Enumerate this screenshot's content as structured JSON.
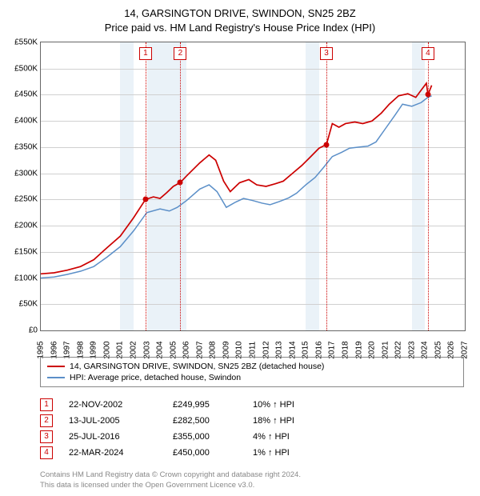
{
  "title_line1": "14, GARSINGTON DRIVE, SWINDON, SN25 2BZ",
  "title_line2": "Price paid vs. HM Land Registry's House Price Index (HPI)",
  "chart": {
    "type": "line",
    "x_start": 1995,
    "x_end": 2027,
    "y_start": 0,
    "y_end": 550000,
    "y_ticks": [
      0,
      50000,
      100000,
      150000,
      200000,
      250000,
      300000,
      350000,
      400000,
      450000,
      500000,
      550000
    ],
    "y_tick_labels": [
      "£0",
      "£50K",
      "£100K",
      "£150K",
      "£200K",
      "£250K",
      "£300K",
      "£350K",
      "£400K",
      "£450K",
      "£500K",
      "£550K"
    ],
    "x_ticks": [
      1995,
      1996,
      1997,
      1998,
      1999,
      2000,
      2001,
      2002,
      2003,
      2004,
      2005,
      2006,
      2007,
      2008,
      2009,
      2010,
      2011,
      2012,
      2013,
      2014,
      2015,
      2016,
      2017,
      2018,
      2019,
      2020,
      2021,
      2022,
      2023,
      2024,
      2025,
      2026,
      2027
    ],
    "bands": [
      [
        2001,
        2002
      ],
      [
        2003,
        2006
      ],
      [
        2015,
        2016
      ],
      [
        2023,
        2024
      ]
    ],
    "grid_color": "#d0d0d0",
    "band_color": "#eaf2f8",
    "series": {
      "property": {
        "color": "#cc0000",
        "width": 1.7,
        "points": [
          [
            1995,
            108000
          ],
          [
            1996,
            110000
          ],
          [
            1997,
            115000
          ],
          [
            1998,
            122000
          ],
          [
            1999,
            135000
          ],
          [
            2000,
            158000
          ],
          [
            2001,
            180000
          ],
          [
            2002,
            215000
          ],
          [
            2002.9,
            249995
          ],
          [
            2003.5,
            255000
          ],
          [
            2004,
            252000
          ],
          [
            2004.5,
            263000
          ],
          [
            2005,
            275000
          ],
          [
            2005.53,
            282500
          ],
          [
            2006,
            295000
          ],
          [
            2007,
            320000
          ],
          [
            2007.7,
            335000
          ],
          [
            2008.2,
            325000
          ],
          [
            2008.8,
            285000
          ],
          [
            2009.3,
            265000
          ],
          [
            2010,
            282000
          ],
          [
            2010.7,
            288000
          ],
          [
            2011.3,
            278000
          ],
          [
            2012,
            275000
          ],
          [
            2012.7,
            280000
          ],
          [
            2013.3,
            285000
          ],
          [
            2014,
            300000
          ],
          [
            2014.7,
            315000
          ],
          [
            2015.3,
            330000
          ],
          [
            2016,
            348000
          ],
          [
            2016.56,
            355000
          ],
          [
            2017,
            395000
          ],
          [
            2017.5,
            388000
          ],
          [
            2018,
            395000
          ],
          [
            2018.7,
            398000
          ],
          [
            2019.3,
            395000
          ],
          [
            2020,
            400000
          ],
          [
            2020.7,
            415000
          ],
          [
            2021.3,
            432000
          ],
          [
            2022,
            448000
          ],
          [
            2022.7,
            452000
          ],
          [
            2023.3,
            445000
          ],
          [
            2023.8,
            462000
          ],
          [
            2024.1,
            472000
          ],
          [
            2024.22,
            450000
          ],
          [
            2024.5,
            468000
          ]
        ]
      },
      "hpi": {
        "color": "#5b8fc8",
        "width": 1.5,
        "points": [
          [
            1995,
            100000
          ],
          [
            1996,
            102000
          ],
          [
            1997,
            107000
          ],
          [
            1998,
            113000
          ],
          [
            1999,
            122000
          ],
          [
            2000,
            140000
          ],
          [
            2001,
            160000
          ],
          [
            2002,
            190000
          ],
          [
            2003,
            225000
          ],
          [
            2004,
            232000
          ],
          [
            2004.7,
            228000
          ],
          [
            2005.3,
            235000
          ],
          [
            2006,
            248000
          ],
          [
            2007,
            270000
          ],
          [
            2007.7,
            278000
          ],
          [
            2008.3,
            265000
          ],
          [
            2009,
            235000
          ],
          [
            2009.7,
            245000
          ],
          [
            2010.3,
            252000
          ],
          [
            2011,
            248000
          ],
          [
            2011.7,
            243000
          ],
          [
            2012.3,
            240000
          ],
          [
            2013,
            246000
          ],
          [
            2013.7,
            253000
          ],
          [
            2014.3,
            262000
          ],
          [
            2015,
            278000
          ],
          [
            2015.7,
            292000
          ],
          [
            2016.3,
            310000
          ],
          [
            2017,
            332000
          ],
          [
            2017.7,
            340000
          ],
          [
            2018.3,
            348000
          ],
          [
            2019,
            350000
          ],
          [
            2019.7,
            352000
          ],
          [
            2020.3,
            360000
          ],
          [
            2021,
            385000
          ],
          [
            2021.7,
            410000
          ],
          [
            2022.3,
            432000
          ],
          [
            2023,
            428000
          ],
          [
            2023.7,
            435000
          ],
          [
            2024.2,
            445000
          ],
          [
            2024.5,
            448000
          ]
        ]
      }
    },
    "markers": [
      {
        "n": "1",
        "x": 2002.9,
        "y": 249995
      },
      {
        "n": "2",
        "x": 2005.53,
        "y": 282500
      },
      {
        "n": "3",
        "x": 2016.56,
        "y": 355000
      },
      {
        "n": "4",
        "x": 2024.22,
        "y": 450000
      }
    ]
  },
  "legend": {
    "item1": "14, GARSINGTON DRIVE, SWINDON, SN25 2BZ (detached house)",
    "item2": "HPI: Average price, detached house, Swindon"
  },
  "sales": [
    {
      "n": "1",
      "date": "22-NOV-2002",
      "price": "£249,995",
      "diff": "10% ↑ HPI"
    },
    {
      "n": "2",
      "date": "13-JUL-2005",
      "price": "£282,500",
      "diff": "18% ↑ HPI"
    },
    {
      "n": "3",
      "date": "25-JUL-2016",
      "price": "£355,000",
      "diff": "4% ↑ HPI"
    },
    {
      "n": "4",
      "date": "22-MAR-2024",
      "price": "£450,000",
      "diff": "1% ↑ HPI"
    }
  ],
  "footer_line1": "Contains HM Land Registry data © Crown copyright and database right 2024.",
  "footer_line2": "This data is licensed under the Open Government Licence v3.0."
}
